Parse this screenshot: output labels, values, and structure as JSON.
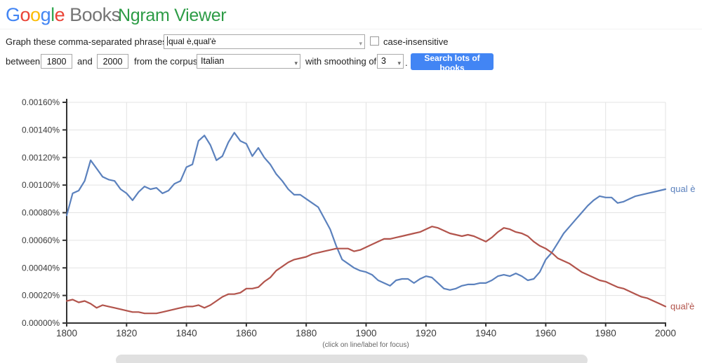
{
  "header": {
    "logo_letters": [
      "G",
      "o",
      "o",
      "g",
      "l",
      "e"
    ],
    "logo_colors": [
      "#4285F4",
      "#EA4335",
      "#FBBC05",
      "#4285F4",
      "#34A853",
      "#EA4335"
    ],
    "books": "Books",
    "title": "Ngram Viewer",
    "title_color": "#2d9c46"
  },
  "form": {
    "phrases_label": "Graph these comma-separated phrases:",
    "phrases_value": "qual è,qual'è",
    "case_insensitive_label": "case-insensitive",
    "case_insensitive_checked": false,
    "between_label": "between",
    "year_start": "1800",
    "and_label": "and",
    "year_end": "2000",
    "corpus_label": "from the corpus",
    "corpus_value": "Italian",
    "smoothing_label": "with smoothing of",
    "smoothing_value": "3",
    "period": ".",
    "search_button": "Search lots of books",
    "button_color": "#4285f4"
  },
  "chart_data": {
    "type": "line",
    "title": "",
    "xlabel": "",
    "ylabel": "",
    "xlim": [
      1800,
      2000
    ],
    "ylim": [
      0,
      0.0016
    ],
    "x_tick_step": 20,
    "y_tick_step": 0.0002,
    "y_tick_labels": [
      "0.00000%",
      "0.00020%",
      "0.00040%",
      "0.00060%",
      "0.00080%",
      "0.00100%",
      "0.00120%",
      "0.00140%",
      "0.00160%"
    ],
    "x_tick_labels": [
      "1800",
      "1820",
      "1840",
      "1860",
      "1880",
      "1900",
      "1920",
      "1940",
      "1960",
      "1980",
      "2000"
    ],
    "grid": true,
    "legend_position": "right-of-line-ends",
    "footnote": "(click on line/label for focus)",
    "x": [
      1800,
      1802,
      1804,
      1806,
      1808,
      1810,
      1812,
      1814,
      1816,
      1818,
      1820,
      1822,
      1824,
      1826,
      1828,
      1830,
      1832,
      1834,
      1836,
      1838,
      1840,
      1842,
      1844,
      1846,
      1848,
      1850,
      1852,
      1854,
      1856,
      1858,
      1860,
      1862,
      1864,
      1866,
      1868,
      1870,
      1872,
      1874,
      1876,
      1878,
      1880,
      1882,
      1884,
      1886,
      1888,
      1890,
      1892,
      1894,
      1896,
      1898,
      1900,
      1902,
      1904,
      1906,
      1908,
      1910,
      1912,
      1914,
      1916,
      1918,
      1920,
      1922,
      1924,
      1926,
      1928,
      1930,
      1932,
      1934,
      1936,
      1938,
      1940,
      1942,
      1944,
      1946,
      1948,
      1950,
      1952,
      1954,
      1956,
      1958,
      1960,
      1962,
      1964,
      1966,
      1968,
      1970,
      1972,
      1974,
      1976,
      1978,
      1980,
      1982,
      1984,
      1986,
      1988,
      1990,
      1992,
      1994,
      1996,
      1998,
      2000
    ],
    "series": [
      {
        "name": "qual è",
        "color": "#5b81bd",
        "values": [
          0.00078,
          0.00094,
          0.00096,
          0.00103,
          0.00118,
          0.00112,
          0.00106,
          0.00104,
          0.00103,
          0.00097,
          0.00094,
          0.00089,
          0.00095,
          0.00099,
          0.00097,
          0.00098,
          0.00094,
          0.00096,
          0.00101,
          0.00103,
          0.00113,
          0.00115,
          0.00132,
          0.00136,
          0.00129,
          0.00118,
          0.00121,
          0.00131,
          0.00138,
          0.00132,
          0.0013,
          0.00121,
          0.00127,
          0.0012,
          0.00115,
          0.00108,
          0.00103,
          0.00097,
          0.00093,
          0.00093,
          0.0009,
          0.00087,
          0.00084,
          0.00076,
          0.00068,
          0.00056,
          0.00046,
          0.00043,
          0.0004,
          0.00038,
          0.00037,
          0.00035,
          0.00031,
          0.00029,
          0.00027,
          0.00031,
          0.00032,
          0.00032,
          0.00029,
          0.00032,
          0.00034,
          0.00033,
          0.00029,
          0.00025,
          0.00024,
          0.00025,
          0.00027,
          0.00028,
          0.00028,
          0.00029,
          0.00029,
          0.00031,
          0.00034,
          0.00035,
          0.00034,
          0.00036,
          0.00034,
          0.00031,
          0.00032,
          0.00037,
          0.00046,
          0.00051,
          0.00058,
          0.00065,
          0.0007,
          0.00075,
          0.0008,
          0.00085,
          0.00089,
          0.00092,
          0.00091,
          0.00091,
          0.00087,
          0.00088,
          0.0009,
          0.00092,
          0.00093,
          0.00094,
          0.00095,
          0.00096,
          0.00097
        ]
      },
      {
        "name": "qual'è",
        "color": "#b2544c",
        "values": [
          0.00016,
          0.00017,
          0.00015,
          0.00016,
          0.00014,
          0.00011,
          0.00013,
          0.00012,
          0.00011,
          0.0001,
          9e-05,
          8e-05,
          8e-05,
          7e-05,
          7e-05,
          7e-05,
          8e-05,
          9e-05,
          0.0001,
          0.00011,
          0.00012,
          0.00012,
          0.00013,
          0.00011,
          0.00013,
          0.00016,
          0.00019,
          0.00021,
          0.00021,
          0.00022,
          0.00025,
          0.00025,
          0.00026,
          0.0003,
          0.00033,
          0.00038,
          0.00041,
          0.00044,
          0.00046,
          0.00047,
          0.00048,
          0.0005,
          0.00051,
          0.00052,
          0.00053,
          0.00054,
          0.00054,
          0.00054,
          0.00052,
          0.00053,
          0.00055,
          0.00057,
          0.00059,
          0.00061,
          0.00061,
          0.00062,
          0.00063,
          0.00064,
          0.00065,
          0.00066,
          0.00068,
          0.0007,
          0.00069,
          0.00067,
          0.00065,
          0.00064,
          0.00063,
          0.00064,
          0.00063,
          0.00061,
          0.00059,
          0.00062,
          0.00066,
          0.00069,
          0.00068,
          0.00066,
          0.00065,
          0.00063,
          0.00059,
          0.00056,
          0.00054,
          0.00051,
          0.00047,
          0.00045,
          0.00043,
          0.0004,
          0.00037,
          0.00035,
          0.00033,
          0.00031,
          0.0003,
          0.00028,
          0.00026,
          0.00025,
          0.00023,
          0.00021,
          0.00019,
          0.00018,
          0.00016,
          0.00014,
          0.00012
        ]
      }
    ]
  }
}
